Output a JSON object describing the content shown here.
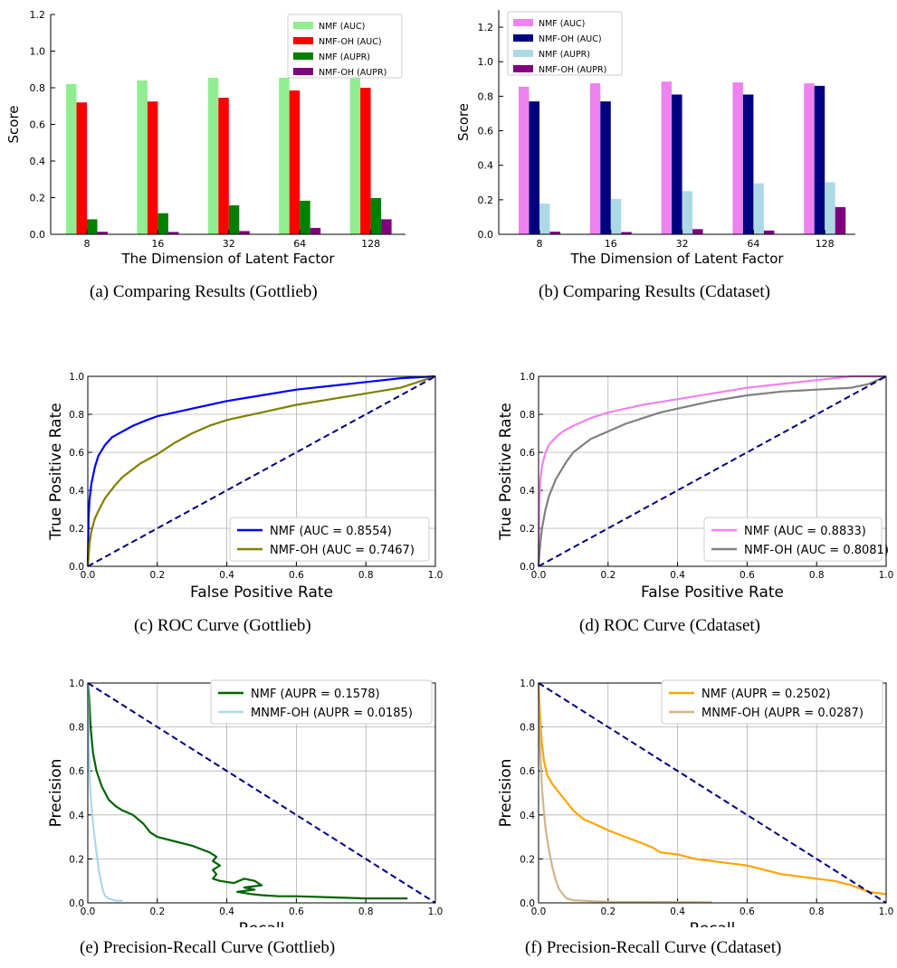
{
  "chart_data": [
    {
      "id": "a",
      "type": "bar",
      "caption": "(a) Comparing Results (Gottlieb)",
      "xlabel": "The Dimension of Latent Factor",
      "ylabel": "Score",
      "ylim": [
        0,
        1.2
      ],
      "yticks": [
        "0.0",
        "0.2",
        "0.4",
        "0.6",
        "0.8",
        "1.0",
        "1.2"
      ],
      "categories": [
        "8",
        "16",
        "32",
        "64",
        "128"
      ],
      "legend_position": "top-right",
      "grid": false,
      "series": [
        {
          "name": "NMF (AUC)",
          "color": "#90ee90",
          "values": [
            0.82,
            0.84,
            0.855,
            0.855,
            0.865
          ]
        },
        {
          "name": "NMF-OH (AUC)",
          "color": "#ff0000",
          "values": [
            0.72,
            0.725,
            0.745,
            0.785,
            0.8
          ]
        },
        {
          "name": "NMF (AUPR)",
          "color": "#008000",
          "values": [
            0.082,
            0.115,
            0.158,
            0.183,
            0.198
          ]
        },
        {
          "name": "NMF-OH (AUPR)",
          "color": "#800080",
          "values": [
            0.014,
            0.013,
            0.018,
            0.035,
            0.082
          ]
        }
      ]
    },
    {
      "id": "b",
      "type": "bar",
      "caption": "(b) Comparing Results (Cdataset)",
      "xlabel": "The Dimension of Latent Factor",
      "ylabel": "Score",
      "ylim": [
        0,
        1.3
      ],
      "yticks": [
        "0.0",
        "0.2",
        "0.4",
        "0.6",
        "0.8",
        "1.0",
        "1.2"
      ],
      "categories": [
        "8",
        "16",
        "32",
        "64",
        "128"
      ],
      "legend_position": "top-left",
      "grid": false,
      "series": [
        {
          "name": "NMF (AUC)",
          "color": "#ee82ee",
          "values": [
            0.855,
            0.875,
            0.885,
            0.88,
            0.875
          ]
        },
        {
          "name": "NMF-OH (AUC)",
          "color": "#000080",
          "values": [
            0.77,
            0.77,
            0.81,
            0.81,
            0.86
          ]
        },
        {
          "name": "NMF (AUPR)",
          "color": "#add8e6",
          "values": [
            0.178,
            0.205,
            0.25,
            0.295,
            0.302
          ]
        },
        {
          "name": "NMF-OH (AUPR)",
          "color": "#800080",
          "values": [
            0.015,
            0.013,
            0.03,
            0.022,
            0.158
          ]
        }
      ]
    },
    {
      "id": "c",
      "type": "line",
      "caption": "(c) ROC Curve (Gottlieb)",
      "xlabel": "False Positive Rate",
      "ylabel": "True Positive Rate",
      "xlim": [
        0,
        1
      ],
      "ylim": [
        0,
        1
      ],
      "ticks": [
        "0.0",
        "0.2",
        "0.4",
        "0.6",
        "0.8",
        "1.0"
      ],
      "grid": true,
      "legend_position": "lower-right",
      "series": [
        {
          "name": "NMF (AUC = 0.8554)",
          "color": "#0000ff",
          "x": [
            0,
            0.002,
            0.005,
            0.01,
            0.02,
            0.03,
            0.05,
            0.07,
            0.1,
            0.13,
            0.17,
            0.2,
            0.25,
            0.3,
            0.35,
            0.4,
            0.5,
            0.6,
            0.7,
            0.8,
            0.9,
            1.0
          ],
          "y": [
            0,
            0.25,
            0.35,
            0.43,
            0.52,
            0.58,
            0.64,
            0.68,
            0.71,
            0.74,
            0.77,
            0.79,
            0.81,
            0.83,
            0.85,
            0.87,
            0.9,
            0.93,
            0.95,
            0.97,
            0.99,
            1.0
          ]
        },
        {
          "name": "NMF-OH (AUC = 0.7467)",
          "color": "#808000",
          "x": [
            0,
            0.005,
            0.01,
            0.02,
            0.03,
            0.05,
            0.08,
            0.1,
            0.15,
            0.2,
            0.25,
            0.3,
            0.35,
            0.4,
            0.5,
            0.6,
            0.7,
            0.8,
            0.9,
            1.0
          ],
          "y": [
            0,
            0.12,
            0.18,
            0.25,
            0.29,
            0.36,
            0.43,
            0.47,
            0.54,
            0.59,
            0.65,
            0.7,
            0.74,
            0.77,
            0.81,
            0.85,
            0.88,
            0.91,
            0.94,
            1.0
          ]
        },
        {
          "name": "",
          "color": "#000080",
          "dashed": true,
          "x": [
            0,
            1
          ],
          "y": [
            0,
            1
          ]
        }
      ]
    },
    {
      "id": "d",
      "type": "line",
      "caption": "(d) ROC Curve (Cdataset)",
      "xlabel": "False Positive Rate",
      "ylabel": "True Positive Rate",
      "xlim": [
        0,
        1
      ],
      "ylim": [
        0,
        1
      ],
      "ticks": [
        "0.0",
        "0.2",
        "0.4",
        "0.6",
        "0.8",
        "1.0"
      ],
      "grid": true,
      "legend_position": "lower-right",
      "series": [
        {
          "name": "NMF (AUC = 0.8833)",
          "color": "#ee82ee",
          "x": [
            0,
            0.002,
            0.005,
            0.01,
            0.02,
            0.03,
            0.05,
            0.07,
            0.1,
            0.15,
            0.2,
            0.25,
            0.3,
            0.4,
            0.5,
            0.6,
            0.7,
            0.8,
            0.9,
            1.0
          ],
          "y": [
            0,
            0.35,
            0.45,
            0.53,
            0.6,
            0.64,
            0.68,
            0.71,
            0.74,
            0.78,
            0.81,
            0.83,
            0.85,
            0.88,
            0.91,
            0.94,
            0.96,
            0.98,
            1.0,
            1.0
          ]
        },
        {
          "name": "NMF-OH (AUC = 0.8081)",
          "color": "#808080",
          "x": [
            0,
            0.005,
            0.01,
            0.02,
            0.03,
            0.05,
            0.08,
            0.1,
            0.15,
            0.2,
            0.25,
            0.3,
            0.35,
            0.4,
            0.5,
            0.6,
            0.7,
            0.8,
            0.9,
            0.95,
            1.0
          ],
          "y": [
            0,
            0.12,
            0.2,
            0.3,
            0.37,
            0.46,
            0.55,
            0.6,
            0.67,
            0.71,
            0.75,
            0.78,
            0.81,
            0.83,
            0.87,
            0.9,
            0.92,
            0.93,
            0.94,
            0.96,
            1.0
          ]
        },
        {
          "name": "",
          "color": "#000080",
          "dashed": true,
          "x": [
            0,
            1
          ],
          "y": [
            0,
            1
          ]
        }
      ]
    },
    {
      "id": "e",
      "type": "line",
      "caption": "(e) Precision-Recall Curve (Gottlieb)",
      "xlabel": "Recall",
      "ylabel": "Precision",
      "xlim": [
        0,
        1
      ],
      "ylim": [
        0,
        1
      ],
      "ticks": [
        "0.0",
        "0.2",
        "0.4",
        "0.6",
        "0.8",
        "1.0"
      ],
      "grid": true,
      "legend_position": "top-right",
      "series": [
        {
          "name": "NMF (AUPR = 0.1578)",
          "color": "#006400",
          "x": [
            0,
            0.003,
            0.008,
            0.015,
            0.025,
            0.04,
            0.06,
            0.08,
            0.1,
            0.13,
            0.16,
            0.18,
            0.2,
            0.25,
            0.3,
            0.35,
            0.37,
            0.36,
            0.38,
            0.36,
            0.37,
            0.36,
            0.38,
            0.42,
            0.45,
            0.48,
            0.5,
            0.45,
            0.48,
            0.43,
            0.47,
            0.5,
            0.55,
            0.6,
            0.7,
            0.8,
            0.9,
            0.92
          ],
          "y": [
            1.0,
            0.95,
            0.8,
            0.68,
            0.6,
            0.53,
            0.47,
            0.44,
            0.42,
            0.4,
            0.36,
            0.32,
            0.3,
            0.28,
            0.26,
            0.23,
            0.21,
            0.19,
            0.17,
            0.15,
            0.13,
            0.11,
            0.1,
            0.09,
            0.11,
            0.1,
            0.08,
            0.07,
            0.06,
            0.05,
            0.04,
            0.035,
            0.03,
            0.03,
            0.025,
            0.02,
            0.02,
            0.02
          ]
        },
        {
          "name": "MNMF-OH (AUPR = 0.0185)",
          "color": "#add8e6",
          "x": [
            0,
            0.003,
            0.006,
            0.01,
            0.015,
            0.02,
            0.025,
            0.03,
            0.035,
            0.04,
            0.045,
            0.05,
            0.06,
            0.08,
            0.1
          ],
          "y": [
            1.0,
            0.72,
            0.55,
            0.45,
            0.36,
            0.29,
            0.23,
            0.17,
            0.12,
            0.08,
            0.05,
            0.03,
            0.02,
            0.01,
            0.01
          ]
        },
        {
          "name": "",
          "color": "#000080",
          "dashed": true,
          "x": [
            0,
            1
          ],
          "y": [
            1,
            0
          ]
        }
      ]
    },
    {
      "id": "f",
      "type": "line",
      "caption": "(f) Precision-Recall Curve (Cdataset)",
      "xlabel": "Recall",
      "ylabel": "Precision",
      "xlim": [
        0,
        1
      ],
      "ylim": [
        0,
        1
      ],
      "ticks": [
        "0.0",
        "0.2",
        "0.4",
        "0.6",
        "0.8",
        "1.0"
      ],
      "grid": true,
      "legend_position": "top-right",
      "series": [
        {
          "name": "NMF (AUPR = 0.2502)",
          "color": "#ffa500",
          "x": [
            0,
            0.003,
            0.008,
            0.015,
            0.025,
            0.04,
            0.06,
            0.08,
            0.1,
            0.13,
            0.16,
            0.2,
            0.25,
            0.3,
            0.33,
            0.35,
            0.4,
            0.45,
            0.5,
            0.55,
            0.6,
            0.65,
            0.7,
            0.75,
            0.8,
            0.85,
            0.9,
            0.95,
            1.0
          ],
          "y": [
            1.0,
            0.9,
            0.75,
            0.65,
            0.58,
            0.54,
            0.5,
            0.46,
            0.42,
            0.38,
            0.36,
            0.33,
            0.3,
            0.27,
            0.25,
            0.23,
            0.22,
            0.2,
            0.19,
            0.18,
            0.17,
            0.15,
            0.13,
            0.12,
            0.11,
            0.1,
            0.08,
            0.05,
            0.04
          ]
        },
        {
          "name": "MNMF-OH (AUPR = 0.0287)",
          "color": "#d2b48c",
          "x": [
            0,
            0.003,
            0.006,
            0.01,
            0.015,
            0.02,
            0.03,
            0.04,
            0.05,
            0.06,
            0.07,
            0.08,
            0.1,
            0.15,
            0.2,
            0.3,
            0.5
          ],
          "y": [
            1.0,
            0.8,
            0.65,
            0.52,
            0.42,
            0.34,
            0.24,
            0.16,
            0.1,
            0.06,
            0.04,
            0.02,
            0.012,
            0.008,
            0.005,
            0.004,
            0.003
          ]
        },
        {
          "name": "",
          "color": "#000080",
          "dashed": true,
          "x": [
            0,
            1
          ],
          "y": [
            1,
            0
          ]
        }
      ]
    }
  ]
}
